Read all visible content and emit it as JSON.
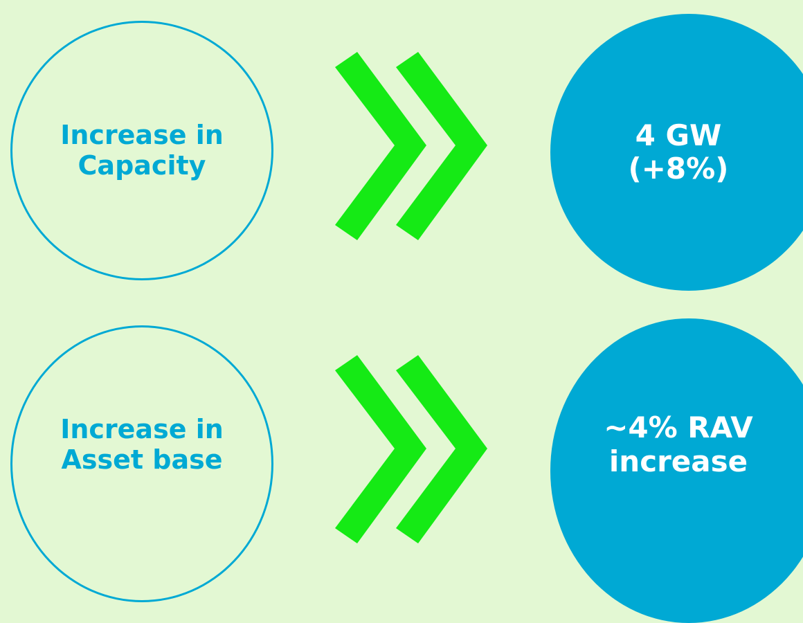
{
  "rows": [
    {
      "source": {
        "line1": "Increase in",
        "line2": "Capacity"
      },
      "result": {
        "line1": "4 GW",
        "line2": "(+8%)"
      }
    },
    {
      "source": {
        "line1": "Increase in",
        "line2": "Asset base"
      },
      "result": {
        "line1": "~4% RAV",
        "line2": "increase"
      }
    }
  ],
  "colors": {
    "background": "#e3f8d3",
    "circle_blue": "#00a9d4",
    "chevron_green": "#15ea15"
  },
  "icons": {
    "connector": "double-chevron-right-icon"
  }
}
